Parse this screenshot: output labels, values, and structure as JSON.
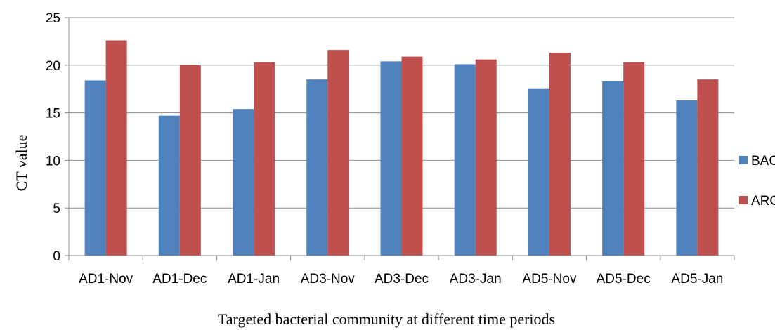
{
  "chart_data": {
    "type": "bar",
    "categories": [
      "AD1-Nov",
      "AD1-Dec",
      "AD1-Jan",
      "AD3-Nov",
      "AD3-Dec",
      "AD3-Jan",
      "AD5-Nov",
      "AD5-Dec",
      "AD5-Jan"
    ],
    "series": [
      {
        "name": "BAC",
        "color": "#4F81BD",
        "values": [
          18.4,
          14.7,
          15.4,
          18.5,
          20.4,
          20.1,
          17.5,
          18.3,
          16.3
        ]
      },
      {
        "name": "ARC",
        "color": "#C0504D",
        "values": [
          22.6,
          20.0,
          20.3,
          21.6,
          20.9,
          20.6,
          21.3,
          20.3,
          18.5
        ]
      }
    ],
    "xlabel": "Targeted bacterial community at different time periods",
    "ylabel": "CT value",
    "ylim": [
      0,
      25
    ],
    "yticks": [
      0,
      5,
      10,
      15,
      20,
      25
    ],
    "grid": true,
    "legend_position": "right"
  }
}
